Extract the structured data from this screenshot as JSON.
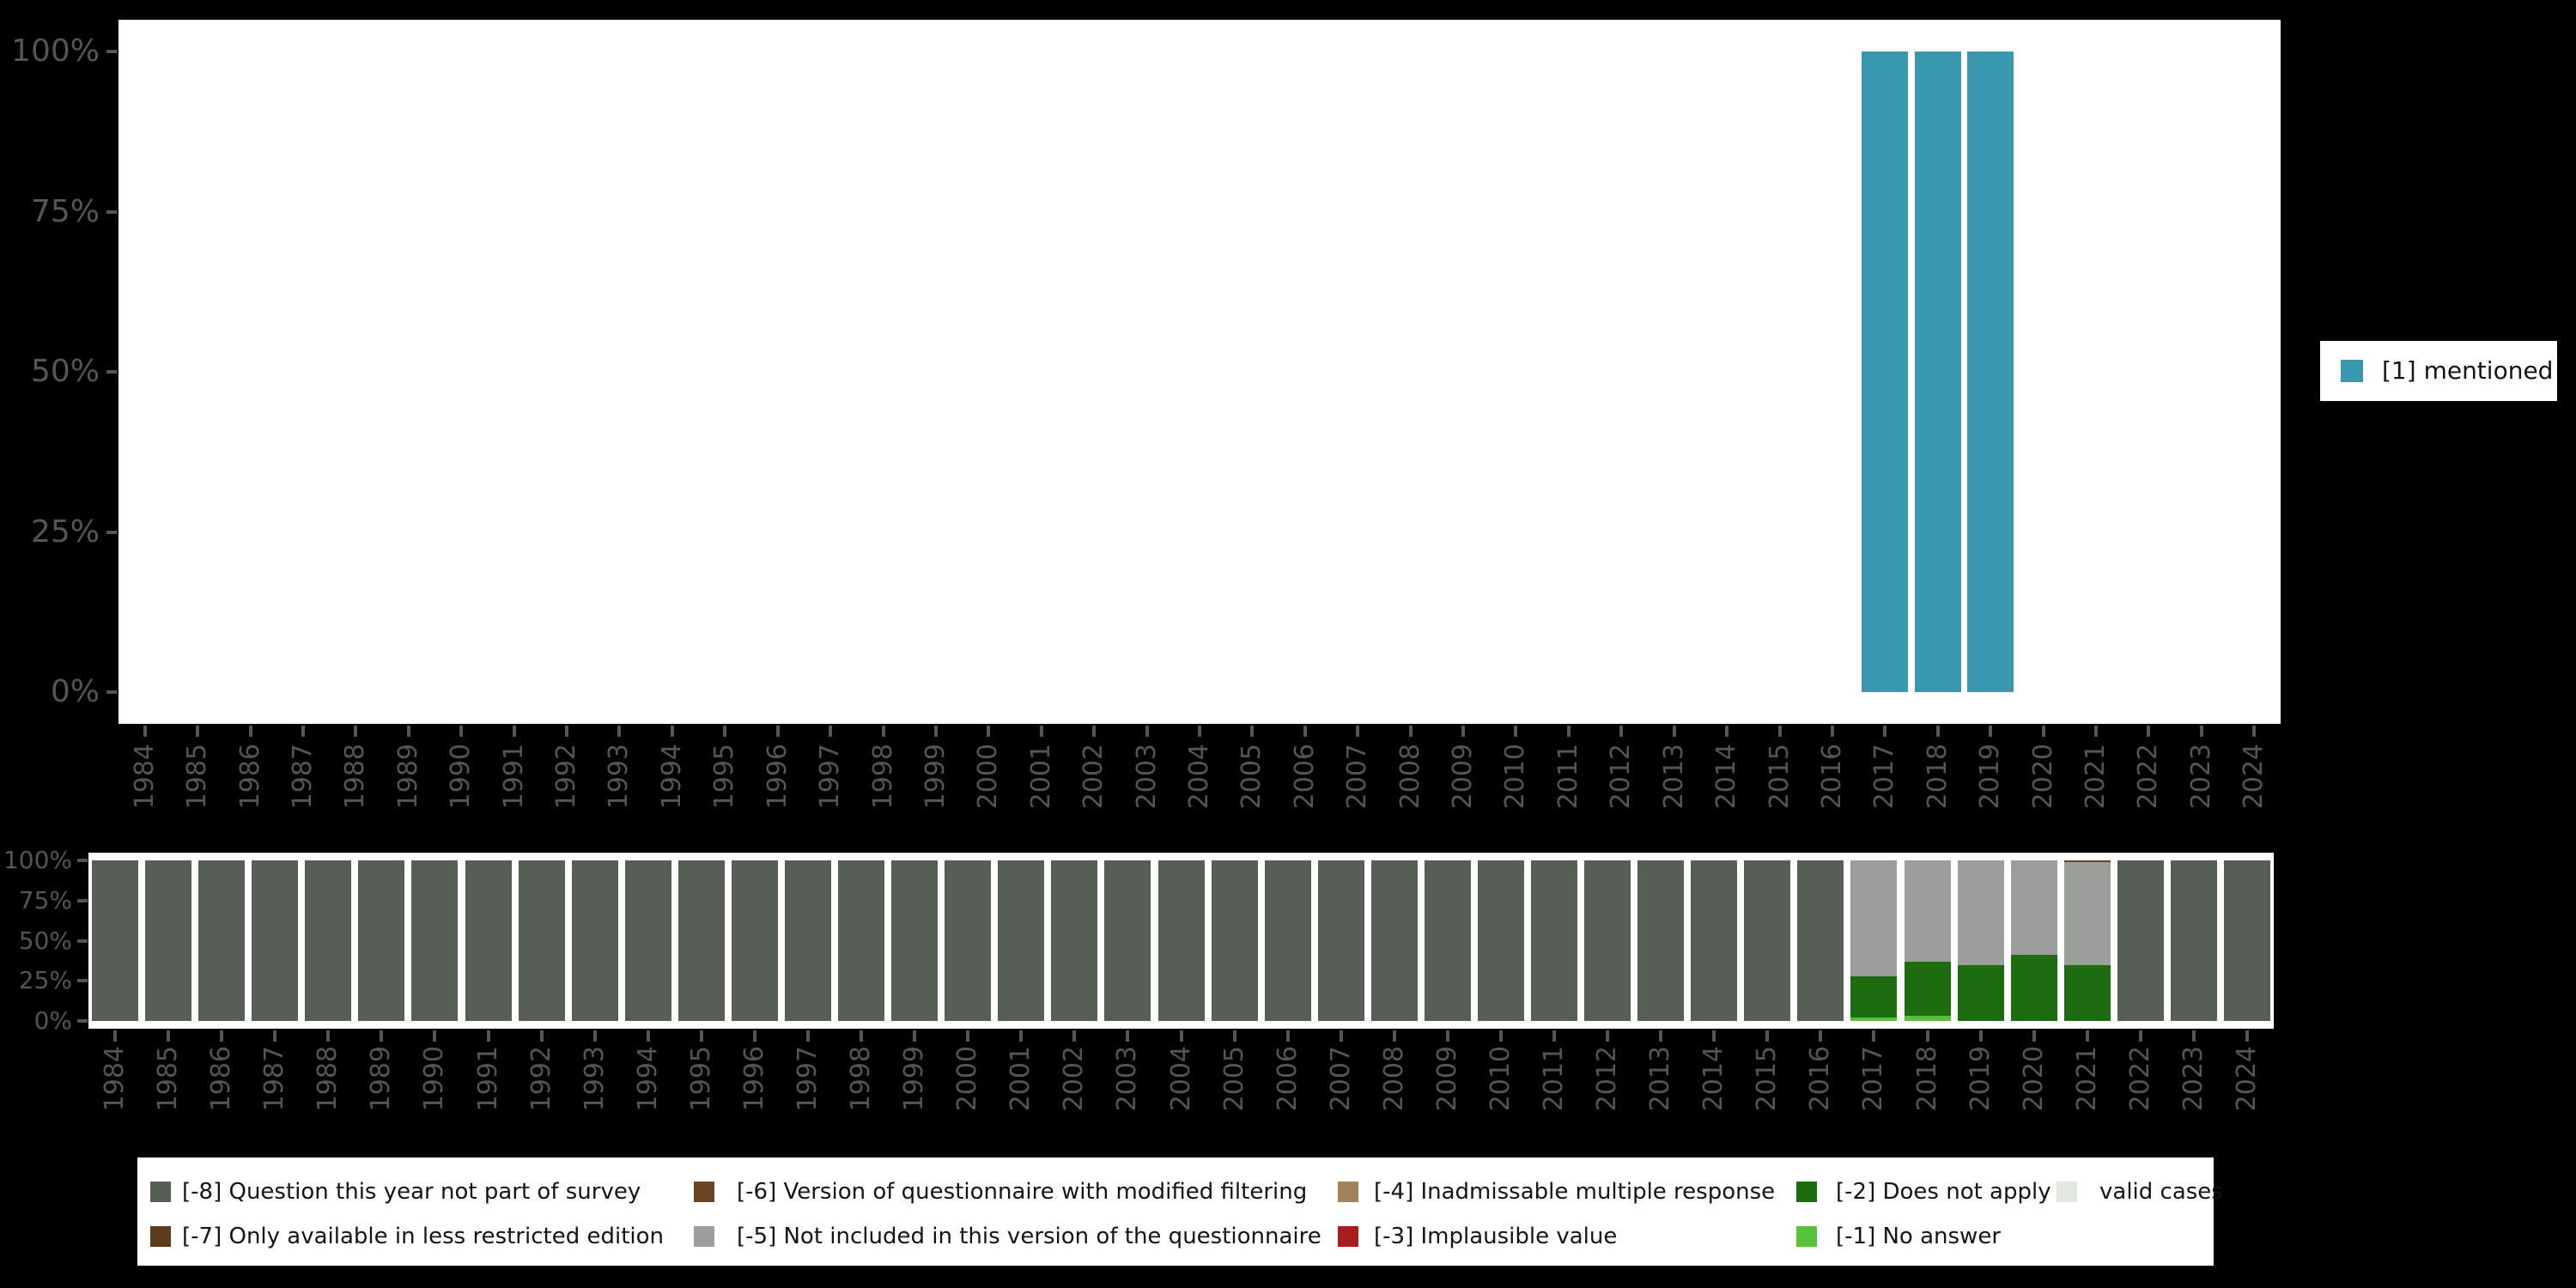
{
  "page": {
    "background": "#000000",
    "plot_background": "#ffffff",
    "axis_text_color": "#555555",
    "legend_text_color": "#141414"
  },
  "chart_data": {
    "years": [
      1984,
      1985,
      1986,
      1987,
      1988,
      1989,
      1990,
      1991,
      1992,
      1993,
      1994,
      1995,
      1996,
      1997,
      1998,
      1999,
      2000,
      2001,
      2002,
      2003,
      2004,
      2005,
      2006,
      2007,
      2008,
      2009,
      2010,
      2011,
      2012,
      2013,
      2014,
      2015,
      2016,
      2017,
      2018,
      2019,
      2020,
      2021,
      2022,
      2023,
      2024
    ],
    "top": {
      "type": "bar",
      "title": "",
      "ylim": [
        0,
        100
      ],
      "y_ticks": [
        0,
        25,
        50,
        75,
        100
      ],
      "y_tick_labels": [
        "0%",
        "25%",
        "50%",
        "75%",
        "100%"
      ],
      "grid": false,
      "legend_position": "right",
      "series": [
        {
          "name": "[1] mentioned",
          "color": "#3a98ae",
          "bars": [
            {
              "year": 2017,
              "pct": 100
            },
            {
              "year": 2018,
              "pct": 100
            },
            {
              "year": 2019,
              "pct": 100
            }
          ]
        }
      ],
      "legend": {
        "entries": [
          {
            "label": "[1] mentioned",
            "color": "#3a98ae"
          }
        ]
      }
    },
    "bottom": {
      "type": "stacked_bar_percent",
      "title": "",
      "ylim": [
        0,
        100
      ],
      "y_ticks": [
        0,
        25,
        50,
        75,
        100
      ],
      "y_tick_labels": [
        "0%",
        "25%",
        "50%",
        "75%",
        "100%"
      ],
      "grid": false,
      "legend_position": "bottom",
      "categories": [
        {
          "key": "-8",
          "label": "[-8] Question this year not part of survey",
          "color": "#565e56"
        },
        {
          "key": "-7",
          "label": "[-7] Only available in less restricted edition",
          "color": "#5b3a1d"
        },
        {
          "key": "-6",
          "label": "[-6] Version of questionnaire with modified filtering",
          "color": "#6b4423"
        },
        {
          "key": "-5",
          "label": "[-5] Not included in this version of the questionnaire",
          "color": "#9a9f99"
        },
        {
          "key": "-4",
          "label": "[-4] Inadmissable multiple response",
          "color": "#a5815a"
        },
        {
          "key": "-3",
          "label": "[-3] Implausible value",
          "color": "#a81d1d"
        },
        {
          "key": "-2",
          "label": "[-2] Does not apply",
          "color": "#1d6c10"
        },
        {
          "key": "-1",
          "label": "[-1] No answer",
          "color": "#57c13b"
        },
        {
          "key": "valid",
          "label": "valid cases",
          "color": "#e2e8df"
        }
      ],
      "bars": [
        {
          "year": 1984,
          "segments": [
            {
              "key": "-8",
              "pct": 100
            }
          ]
        },
        {
          "year": 1985,
          "segments": [
            {
              "key": "-8",
              "pct": 100
            }
          ]
        },
        {
          "year": 1986,
          "segments": [
            {
              "key": "-8",
              "pct": 100
            }
          ]
        },
        {
          "year": 1987,
          "segments": [
            {
              "key": "-8",
              "pct": 100
            }
          ]
        },
        {
          "year": 1988,
          "segments": [
            {
              "key": "-8",
              "pct": 100
            }
          ]
        },
        {
          "year": 1989,
          "segments": [
            {
              "key": "-8",
              "pct": 100
            }
          ]
        },
        {
          "year": 1990,
          "segments": [
            {
              "key": "-8",
              "pct": 100
            }
          ]
        },
        {
          "year": 1991,
          "segments": [
            {
              "key": "-8",
              "pct": 100
            }
          ]
        },
        {
          "year": 1992,
          "segments": [
            {
              "key": "-8",
              "pct": 100
            }
          ]
        },
        {
          "year": 1993,
          "segments": [
            {
              "key": "-8",
              "pct": 100
            }
          ]
        },
        {
          "year": 1994,
          "segments": [
            {
              "key": "-8",
              "pct": 100
            }
          ]
        },
        {
          "year": 1995,
          "segments": [
            {
              "key": "-8",
              "pct": 100
            }
          ]
        },
        {
          "year": 1996,
          "segments": [
            {
              "key": "-8",
              "pct": 100
            }
          ]
        },
        {
          "year": 1997,
          "segments": [
            {
              "key": "-8",
              "pct": 100
            }
          ]
        },
        {
          "year": 1998,
          "segments": [
            {
              "key": "-8",
              "pct": 100
            }
          ]
        },
        {
          "year": 1999,
          "segments": [
            {
              "key": "-8",
              "pct": 100
            }
          ]
        },
        {
          "year": 2000,
          "segments": [
            {
              "key": "-8",
              "pct": 100
            }
          ]
        },
        {
          "year": 2001,
          "segments": [
            {
              "key": "-8",
              "pct": 100
            }
          ]
        },
        {
          "year": 2002,
          "segments": [
            {
              "key": "-8",
              "pct": 100
            }
          ]
        },
        {
          "year": 2003,
          "segments": [
            {
              "key": "-8",
              "pct": 100
            }
          ]
        },
        {
          "year": 2004,
          "segments": [
            {
              "key": "-8",
              "pct": 100
            }
          ]
        },
        {
          "year": 2005,
          "segments": [
            {
              "key": "-8",
              "pct": 100
            }
          ]
        },
        {
          "year": 2006,
          "segments": [
            {
              "key": "-8",
              "pct": 100
            }
          ]
        },
        {
          "year": 2007,
          "segments": [
            {
              "key": "-8",
              "pct": 100
            }
          ]
        },
        {
          "year": 2008,
          "segments": [
            {
              "key": "-8",
              "pct": 100
            }
          ]
        },
        {
          "year": 2009,
          "segments": [
            {
              "key": "-8",
              "pct": 100
            }
          ]
        },
        {
          "year": 2010,
          "segments": [
            {
              "key": "-8",
              "pct": 100
            }
          ]
        },
        {
          "year": 2011,
          "segments": [
            {
              "key": "-8",
              "pct": 100
            }
          ]
        },
        {
          "year": 2012,
          "segments": [
            {
              "key": "-8",
              "pct": 100
            }
          ]
        },
        {
          "year": 2013,
          "segments": [
            {
              "key": "-8",
              "pct": 100
            }
          ]
        },
        {
          "year": 2014,
          "segments": [
            {
              "key": "-8",
              "pct": 100
            }
          ]
        },
        {
          "year": 2015,
          "segments": [
            {
              "key": "-8",
              "pct": 100
            }
          ]
        },
        {
          "year": 2016,
          "segments": [
            {
              "key": "-8",
              "pct": 100
            }
          ]
        },
        {
          "year": 2017,
          "segments": [
            {
              "key": "-1",
              "pct": 2
            },
            {
              "key": "-2",
              "pct": 26
            },
            {
              "key": "-5",
              "pct": 72
            }
          ]
        },
        {
          "year": 2018,
          "segments": [
            {
              "key": "-1",
              "pct": 3
            },
            {
              "key": "-2",
              "pct": 34
            },
            {
              "key": "-5",
              "pct": 63
            }
          ]
        },
        {
          "year": 2019,
          "segments": [
            {
              "key": "-2",
              "pct": 35
            },
            {
              "key": "-5",
              "pct": 65
            }
          ]
        },
        {
          "year": 2020,
          "segments": [
            {
              "key": "-2",
              "pct": 41
            },
            {
              "key": "-5",
              "pct": 59
            }
          ]
        },
        {
          "year": 2021,
          "segments": [
            {
              "key": "-2",
              "pct": 35
            },
            {
              "key": "-5",
              "pct": 64
            },
            {
              "key": "-6",
              "pct": 1
            }
          ]
        },
        {
          "year": 2022,
          "segments": [
            {
              "key": "-8",
              "pct": 100
            }
          ]
        },
        {
          "year": 2023,
          "segments": [
            {
              "key": "-8",
              "pct": 100
            }
          ]
        },
        {
          "year": 2024,
          "segments": [
            {
              "key": "-8",
              "pct": 100
            }
          ]
        }
      ]
    }
  }
}
